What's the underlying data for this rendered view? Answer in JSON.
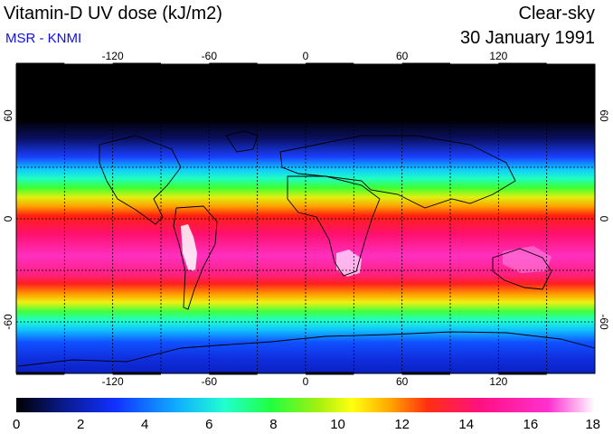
{
  "header": {
    "title": "Vitamin-D UV dose (kJ/m2)",
    "source": "MSR - KNMI",
    "sky_condition": "Clear-sky",
    "date": "30 January 1991"
  },
  "map": {
    "projection": "equirectangular",
    "lon_range": [
      -180,
      180
    ],
    "lat_range": [
      -90,
      90
    ],
    "lon_ticks": [
      {
        "value": -120,
        "label": "-120"
      },
      {
        "value": -60,
        "label": "-60"
      },
      {
        "value": 0,
        "label": "0"
      },
      {
        "value": 60,
        "label": "60"
      },
      {
        "value": 120,
        "label": "120"
      }
    ],
    "lat_ticks": [
      {
        "value": 60,
        "label": "60"
      },
      {
        "value": 0,
        "label": "0"
      },
      {
        "value": -60,
        "label": "-60"
      }
    ],
    "gridlines": "dashed, every 30 degrees"
  },
  "colorbar": {
    "min": 0,
    "max": 18,
    "ticks": [
      "0",
      "2",
      "4",
      "6",
      "8",
      "10",
      "12",
      "14",
      "16",
      "18"
    ],
    "colors": [
      "#000000",
      "#0a1a8a",
      "#1030ff",
      "#10b0ff",
      "#20ffd0",
      "#20ff40",
      "#a0f010",
      "#ffff10",
      "#ffb000",
      "#ff3010",
      "#ff1080",
      "#ff30d0",
      "#ffffff"
    ]
  }
}
